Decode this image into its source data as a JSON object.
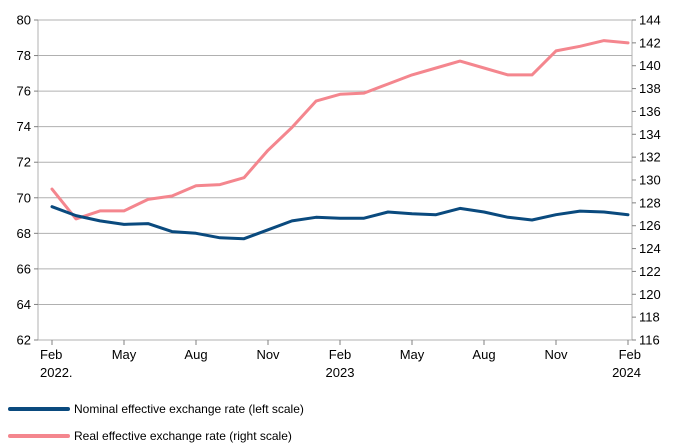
{
  "chart_data": {
    "type": "line",
    "x_ticks": [
      {
        "month": 0,
        "lines": [
          "Feb",
          "2022."
        ]
      },
      {
        "month": 3,
        "lines": [
          "May",
          ""
        ]
      },
      {
        "month": 6,
        "lines": [
          "Aug",
          ""
        ]
      },
      {
        "month": 9,
        "lines": [
          "Nov",
          ""
        ]
      },
      {
        "month": 12,
        "lines": [
          "Feb",
          "2023"
        ]
      },
      {
        "month": 15,
        "lines": [
          "May",
          ""
        ]
      },
      {
        "month": 18,
        "lines": [
          "Aug",
          ""
        ]
      },
      {
        "month": 21,
        "lines": [
          "Nov",
          ""
        ]
      },
      {
        "month": 24,
        "lines": [
          "Feb",
          "2024"
        ]
      }
    ],
    "x": [
      "2022-02",
      "2022-03",
      "2022-04",
      "2022-05",
      "2022-06",
      "2022-07",
      "2022-08",
      "2022-09",
      "2022-10",
      "2022-11",
      "2022-12",
      "2023-01",
      "2023-02",
      "2023-03",
      "2023-04",
      "2023-05",
      "2023-06",
      "2023-07",
      "2023-08",
      "2023-09",
      "2023-10",
      "2023-11",
      "2023-12",
      "2024-01",
      "2024-02"
    ],
    "y_left": {
      "min": 62,
      "max": 80,
      "step": 2
    },
    "y_right": {
      "min": 116,
      "max": 144,
      "step": 2
    },
    "series": [
      {
        "name": "Nominal effective exchange rate (left scale)",
        "axis": "left",
        "color": "#0a4a7e",
        "values": [
          69.5,
          69.0,
          68.7,
          68.5,
          68.55,
          68.1,
          68.0,
          67.75,
          67.7,
          68.2,
          68.7,
          68.9,
          68.85,
          68.85,
          69.2,
          69.1,
          69.05,
          69.4,
          69.2,
          68.9,
          68.75,
          69.05,
          69.25,
          69.2,
          69.05
        ]
      },
      {
        "name": "Real effective exchange rate (right scale)",
        "axis": "right",
        "color": "#f4868e",
        "values": [
          129.2,
          126.6,
          127.3,
          127.3,
          128.3,
          128.6,
          129.5,
          129.6,
          130.2,
          132.6,
          134.6,
          136.9,
          137.5,
          137.6,
          138.4,
          139.2,
          139.8,
          140.4,
          139.8,
          139.2,
          139.2,
          141.3,
          141.7,
          142.2,
          142.0
        ]
      }
    ]
  }
}
